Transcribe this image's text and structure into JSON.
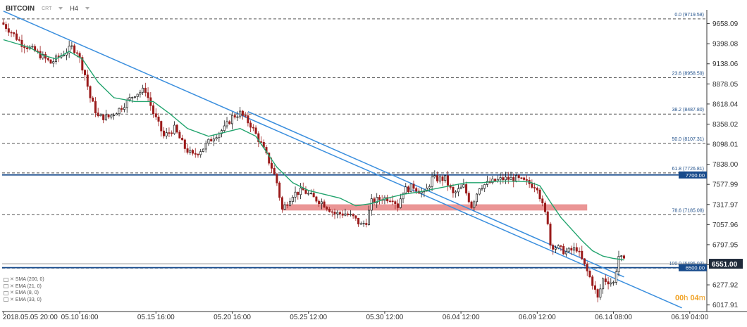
{
  "toolbar": {
    "symbol": "BITCOIN",
    "sub": "CRT",
    "timeframe": "H4"
  },
  "timer": {
    "value_h": "00",
    "unit_h": "h",
    "value_m": "04",
    "unit_m": "m"
  },
  "indicators": [
    {
      "label": "SMA (200, 0)"
    },
    {
      "label": "EMA (21, 0)"
    },
    {
      "label": "EMA (8, 0)"
    },
    {
      "label": "EMA (33, 0)"
    }
  ],
  "colors": {
    "bull": "#1a1a1a",
    "bear": "#9b1b1b",
    "ema": "#22a46e",
    "trend": "#3b8fde",
    "level": "#174a8b",
    "fib": "#555555",
    "zone": "#e88a8a",
    "price_tag": "#174a8b",
    "current_tag": "#1f2a3a"
  },
  "chart_data": {
    "type": "candlestick",
    "y_axis": {
      "min": 5960,
      "max": 9800,
      "tick_labels": [
        "9658.09",
        "9398.08",
        "9138.06",
        "8878.05",
        "8618.04",
        "8358.02",
        "8098.01",
        "7838.00",
        "7577.99",
        "7317.97",
        "7057.96",
        "6797.95",
        "6537.93",
        "6277.92",
        "6017.91"
      ],
      "tick_values": [
        9658.09,
        9398.08,
        9138.06,
        8878.05,
        8618.04,
        8358.02,
        8098.01,
        7838.0,
        7577.99,
        7317.97,
        7057.96,
        6797.95,
        6537.93,
        6277.92,
        6017.91
      ]
    },
    "x_axis": {
      "labels": [
        "2018.05.05  20:00",
        "05.10  16:00",
        "05.15  16:00",
        "05.20  16:00",
        "05.25  12:00",
        "05.30  12:00",
        "06.04  12:00",
        "06.09  12:00",
        "06.14  08:00",
        "06.19  04:00"
      ],
      "label_index": [
        0,
        29,
        58,
        87,
        116,
        145,
        174,
        203,
        232,
        261
      ]
    },
    "fib_levels": [
      {
        "label": "0.0 (9719.58)",
        "value": 9719.58
      },
      {
        "label": "23.6 (8958.59)",
        "value": 8958.59
      },
      {
        "label": "38.2 (8487.80)",
        "value": 8487.8
      },
      {
        "label": "50.0 (8107.31)",
        "value": 8107.31
      },
      {
        "label": "61.8 (7726.81)",
        "value": 7726.81
      },
      {
        "label": "78.6 (7185.08)",
        "value": 7185.08
      },
      {
        "label": "100.0 (6495.03)",
        "value": 6495.03
      }
    ],
    "horizontal_levels": [
      {
        "label": "7700.00",
        "value": 7700
      },
      {
        "label": "6500.00",
        "value": 6500
      }
    ],
    "current_price": {
      "label": "6551.00",
      "value": 6551
    },
    "zone": {
      "from_index": 106,
      "to_index": 222,
      "low": 7240,
      "high": 7320
    },
    "trendlines": [
      {
        "x1": 0,
        "y1": 9820,
        "x2": 258,
        "y2": 5980
      },
      {
        "x1": 93,
        "y1": 8520,
        "x2": 236,
        "y2": 6380
      }
    ],
    "anchors": [
      [
        0,
        9650
      ],
      [
        3,
        9550
      ],
      [
        7,
        9400
      ],
      [
        12,
        9300
      ],
      [
        18,
        9150
      ],
      [
        22,
        9250
      ],
      [
        26,
        9350
      ],
      [
        28,
        9300
      ],
      [
        31,
        9000
      ],
      [
        33,
        8700
      ],
      [
        36,
        8450
      ],
      [
        40,
        8450
      ],
      [
        44,
        8550
      ],
      [
        50,
        8750
      ],
      [
        54,
        8800
      ],
      [
        57,
        8500
      ],
      [
        61,
        8200
      ],
      [
        65,
        8300
      ],
      [
        69,
        8050
      ],
      [
        72,
        7950
      ],
      [
        76,
        8050
      ],
      [
        80,
        8200
      ],
      [
        84,
        8300
      ],
      [
        87,
        8450
      ],
      [
        90,
        8500
      ],
      [
        94,
        8350
      ],
      [
        98,
        8100
      ],
      [
        102,
        7800
      ],
      [
        104,
        7600
      ],
      [
        106,
        7250
      ],
      [
        110,
        7450
      ],
      [
        114,
        7500
      ],
      [
        118,
        7400
      ],
      [
        121,
        7350
      ],
      [
        126,
        7200
      ],
      [
        130,
        7200
      ],
      [
        133,
        7150
      ],
      [
        136,
        7050
      ],
      [
        138,
        7100
      ],
      [
        140,
        7350
      ],
      [
        144,
        7400
      ],
      [
        148,
        7400
      ],
      [
        150,
        7300
      ],
      [
        152,
        7500
      ],
      [
        156,
        7550
      ],
      [
        160,
        7450
      ],
      [
        163,
        7650
      ],
      [
        168,
        7650
      ],
      [
        171,
        7450
      ],
      [
        175,
        7550
      ],
      [
        178,
        7300
      ],
      [
        181,
        7550
      ],
      [
        185,
        7600
      ],
      [
        190,
        7650
      ],
      [
        195,
        7650
      ],
      [
        199,
        7600
      ],
      [
        203,
        7550
      ],
      [
        205,
        7300
      ],
      [
        207,
        7100
      ],
      [
        208,
        6800
      ],
      [
        211,
        6750
      ],
      [
        214,
        6700
      ],
      [
        218,
        6750
      ],
      [
        222,
        6450
      ],
      [
        224,
        6300
      ],
      [
        226,
        6100
      ],
      [
        228,
        6350
      ],
      [
        232,
        6300
      ],
      [
        234,
        6650
      ],
      [
        236,
        6580
      ]
    ],
    "ema_points": [
      [
        0,
        9450
      ],
      [
        5,
        9400
      ],
      [
        10,
        9350
      ],
      [
        15,
        9250
      ],
      [
        20,
        9200
      ],
      [
        25,
        9300
      ],
      [
        30,
        9200
      ],
      [
        36,
        8900
      ],
      [
        42,
        8700
      ],
      [
        50,
        8650
      ],
      [
        57,
        8650
      ],
      [
        63,
        8500
      ],
      [
        70,
        8300
      ],
      [
        78,
        8200
      ],
      [
        84,
        8250
      ],
      [
        90,
        8300
      ],
      [
        96,
        8200
      ],
      [
        100,
        8000
      ],
      [
        104,
        7800
      ],
      [
        110,
        7600
      ],
      [
        116,
        7500
      ],
      [
        122,
        7450
      ],
      [
        128,
        7400
      ],
      [
        134,
        7300
      ],
      [
        140,
        7330
      ],
      [
        146,
        7400
      ],
      [
        152,
        7450
      ],
      [
        158,
        7480
      ],
      [
        164,
        7520
      ],
      [
        170,
        7560
      ],
      [
        176,
        7600
      ],
      [
        182,
        7600
      ],
      [
        188,
        7620
      ],
      [
        194,
        7620
      ],
      [
        200,
        7610
      ],
      [
        204,
        7560
      ],
      [
        208,
        7350
      ],
      [
        212,
        7150
      ],
      [
        216,
        7000
      ],
      [
        220,
        6850
      ],
      [
        224,
        6720
      ],
      [
        228,
        6650
      ],
      [
        232,
        6620
      ],
      [
        236,
        6600
      ]
    ]
  }
}
